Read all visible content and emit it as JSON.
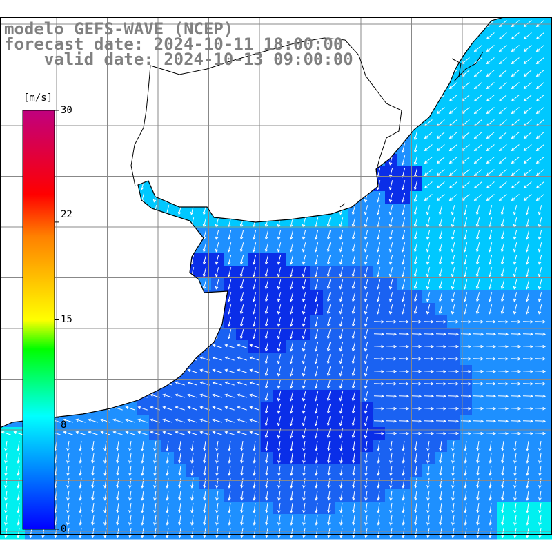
{
  "header": {
    "line1": "modelo GEFS-WAVE (NCEP)",
    "line2": "forecast date: 2024-10-11 18:00:00",
    "line3": "    valid date: 2024-10-13 09:00:00"
  },
  "colorbar": {
    "unit": "[m/s]",
    "ticks": [
      {
        "label": "30",
        "value": 30
      },
      {
        "label": "22",
        "value": 22
      },
      {
        "label": "15",
        "value": 15
      },
      {
        "label": "8",
        "value": 8
      },
      {
        "label": "0",
        "value": 0
      }
    ],
    "min": 0,
    "max": 30,
    "colors": [
      "#0000ff",
      "#00ffff",
      "#00ff00",
      "#ffff00",
      "#ff8000",
      "#ff0000",
      "#c0007f"
    ]
  },
  "map": {
    "land_color": "#ffffff",
    "grid_color": "#888888",
    "coast_color": "#000000",
    "arrow_color": "#ffffff",
    "field_colors": {
      "deep": "#0a2ee8",
      "mid": "#1a62f2",
      "light": "#1e90ff",
      "cyan": "#00c8ff",
      "aqua": "#00f0f0"
    }
  }
}
